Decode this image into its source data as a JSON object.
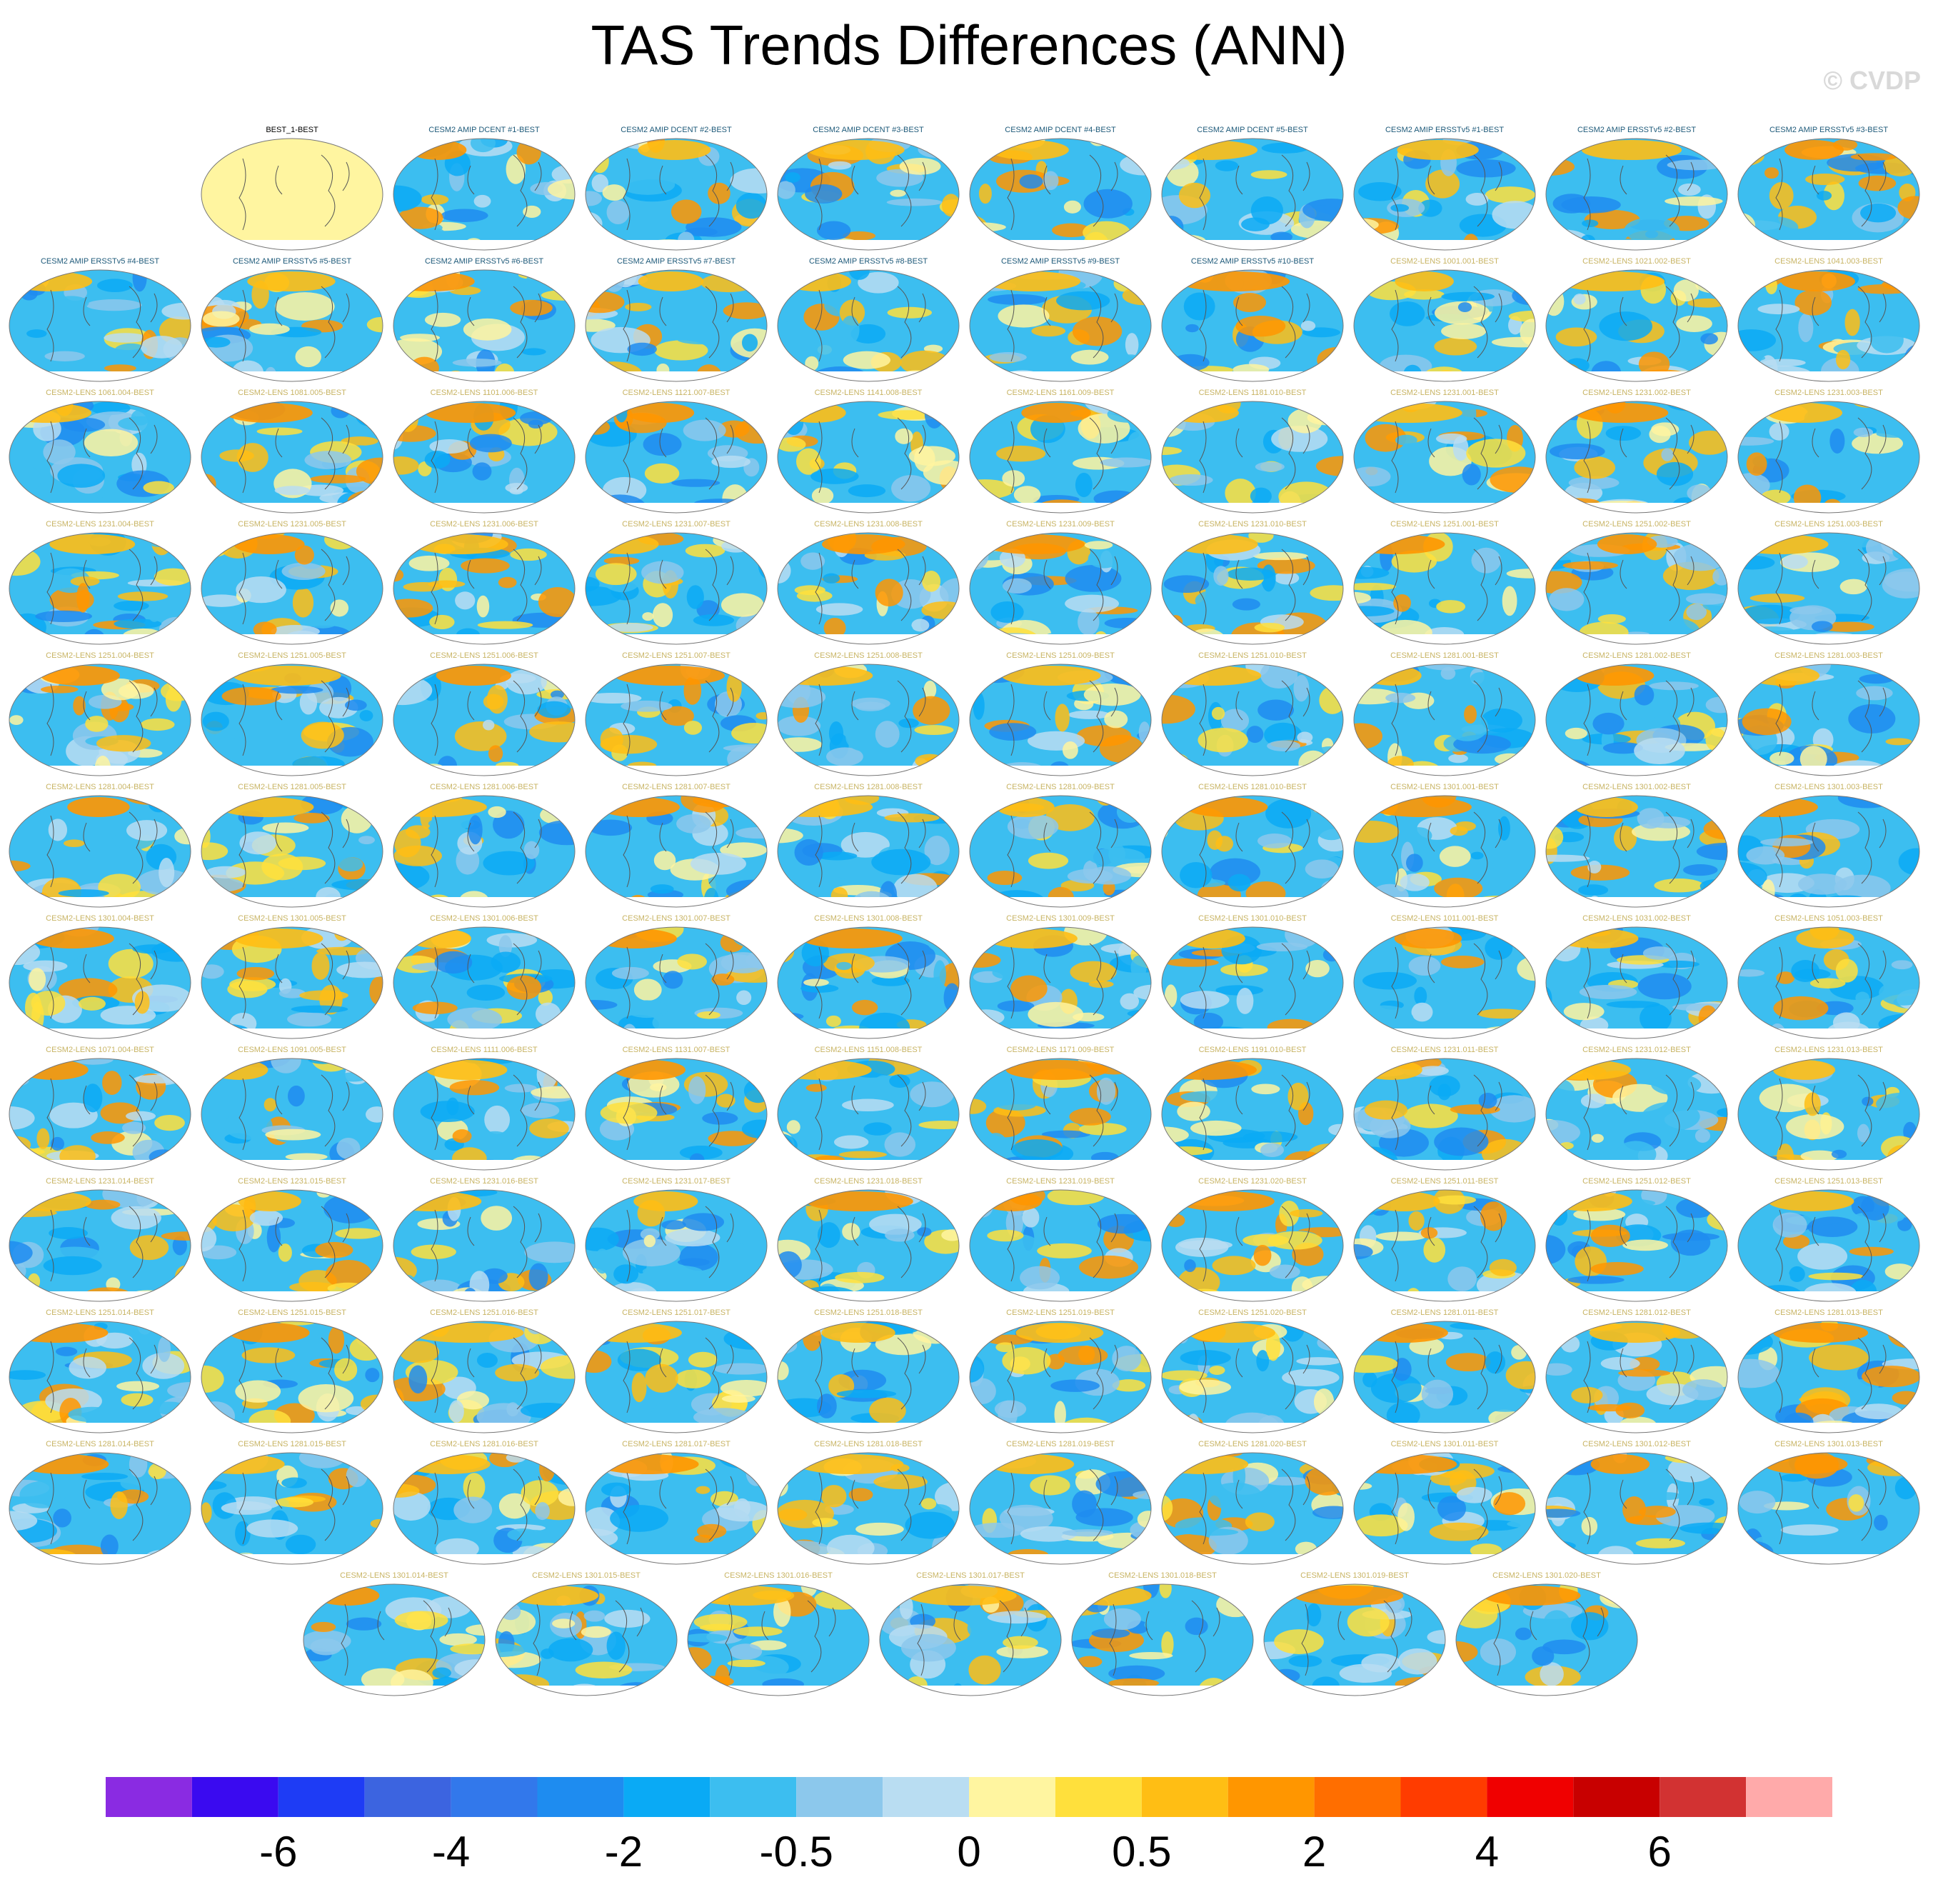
{
  "title": "TAS Trends Differences (ANN)",
  "copyright": "© CVDP",
  "chart_data": {
    "type": "heatmap",
    "title": "TAS Trends Differences (ANN)",
    "projection": "global map panels",
    "panel_titles": [
      "BEST_1-BEST",
      "CESM2 AMIP DCENT #1-BEST",
      "CESM2 AMIP DCENT #2-BEST",
      "CESM2 AMIP DCENT #3-BEST",
      "CESM2 AMIP DCENT #4-BEST",
      "CESM2 AMIP DCENT #5-BEST",
      "CESM2 AMIP ERSSTv5 #1-BEST",
      "CESM2 AMIP ERSSTv5 #2-BEST",
      "CESM2 AMIP ERSSTv5 #3-BEST",
      "CESM2 AMIP ERSSTv5 #4-BEST",
      "CESM2 AMIP ERSSTv5 #5-BEST",
      "CESM2 AMIP ERSSTv5 #6-BEST",
      "CESM2 AMIP ERSSTv5 #7-BEST",
      "CESM2 AMIP ERSSTv5 #8-BEST",
      "CESM2 AMIP ERSSTv5 #9-BEST",
      "CESM2 AMIP ERSSTv5 #10-BEST",
      "CESM2-LENS 1001.001-BEST",
      "CESM2-LENS 1021.002-BEST",
      "CESM2-LENS 1041.003-BEST",
      "CESM2-LENS 1061.004-BEST",
      "CESM2-LENS 1081.005-BEST",
      "CESM2-LENS 1101.006-BEST",
      "CESM2-LENS 1121.007-BEST",
      "CESM2-LENS 1141.008-BEST",
      "CESM2-LENS 1161.009-BEST",
      "CESM2-LENS 1181.010-BEST",
      "CESM2-LENS 1231.001-BEST",
      "CESM2-LENS 1231.002-BEST",
      "CESM2-LENS 1231.003-BEST",
      "CESM2-LENS 1231.004-BEST",
      "CESM2-LENS 1231.005-BEST",
      "CESM2-LENS 1231.006-BEST",
      "CESM2-LENS 1231.007-BEST",
      "CESM2-LENS 1231.008-BEST",
      "CESM2-LENS 1231.009-BEST",
      "CESM2-LENS 1231.010-BEST",
      "CESM2-LENS 1251.001-BEST",
      "CESM2-LENS 1251.002-BEST",
      "CESM2-LENS 1251.003-BEST",
      "CESM2-LENS 1251.004-BEST",
      "CESM2-LENS 1251.005-BEST",
      "CESM2-LENS 1251.006-BEST",
      "CESM2-LENS 1251.007-BEST",
      "CESM2-LENS 1251.008-BEST",
      "CESM2-LENS 1251.009-BEST",
      "CESM2-LENS 1251.010-BEST",
      "CESM2-LENS 1281.001-BEST",
      "CESM2-LENS 1281.002-BEST",
      "CESM2-LENS 1281.003-BEST",
      "CESM2-LENS 1281.004-BEST",
      "CESM2-LENS 1281.005-BEST",
      "CESM2-LENS 1281.006-BEST",
      "CESM2-LENS 1281.007-BEST",
      "CESM2-LENS 1281.008-BEST",
      "CESM2-LENS 1281.009-BEST",
      "CESM2-LENS 1281.010-BEST",
      "CESM2-LENS 1301.001-BEST",
      "CESM2-LENS 1301.002-BEST",
      "CESM2-LENS 1301.003-BEST",
      "CESM2-LENS 1301.004-BEST",
      "CESM2-LENS 1301.005-BEST",
      "CESM2-LENS 1301.006-BEST",
      "CESM2-LENS 1301.007-BEST",
      "CESM2-LENS 1301.008-BEST",
      "CESM2-LENS 1301.009-BEST",
      "CESM2-LENS 1301.010-BEST",
      "CESM2-LENS 1011.001-BEST",
      "CESM2-LENS 1031.002-BEST",
      "CESM2-LENS 1051.003-BEST",
      "CESM2-LENS 1071.004-BEST",
      "CESM2-LENS 1091.005-BEST",
      "CESM2-LENS 1111.006-BEST",
      "CESM2-LENS 1131.007-BEST",
      "CESM2-LENS 1151.008-BEST",
      "CESM2-LENS 1171.009-BEST",
      "CESM2-LENS 1191.010-BEST",
      "CESM2-LENS 1231.011-BEST",
      "CESM2-LENS 1231.012-BEST",
      "CESM2-LENS 1231.013-BEST",
      "CESM2-LENS 1231.014-BEST",
      "CESM2-LENS 1231.015-BEST",
      "CESM2-LENS 1231.016-BEST",
      "CESM2-LENS 1231.017-BEST",
      "CESM2-LENS 1231.018-BEST",
      "CESM2-LENS 1231.019-BEST",
      "CESM2-LENS 1231.020-BEST",
      "CESM2-LENS 1251.011-BEST",
      "CESM2-LENS 1251.012-BEST",
      "CESM2-LENS 1251.013-BEST",
      "CESM2-LENS 1251.014-BEST",
      "CESM2-LENS 1251.015-BEST",
      "CESM2-LENS 1251.016-BEST",
      "CESM2-LENS 1251.017-BEST",
      "CESM2-LENS 1251.018-BEST",
      "CESM2-LENS 1251.019-BEST",
      "CESM2-LENS 1251.020-BEST",
      "CESM2-LENS 1281.011-BEST",
      "CESM2-LENS 1281.012-BEST",
      "CESM2-LENS 1281.013-BEST",
      "CESM2-LENS 1281.014-BEST",
      "CESM2-LENS 1281.015-BEST",
      "CESM2-LENS 1281.016-BEST",
      "CESM2-LENS 1281.017-BEST",
      "CESM2-LENS 1281.018-BEST",
      "CESM2-LENS 1281.019-BEST",
      "CESM2-LENS 1281.020-BEST",
      "CESM2-LENS 1301.011-BEST",
      "CESM2-LENS 1301.012-BEST",
      "CESM2-LENS 1301.013-BEST",
      "CESM2-LENS 1301.014-BEST",
      "CESM2-LENS 1301.015-BEST",
      "CESM2-LENS 1301.016-BEST",
      "CESM2-LENS 1301.017-BEST",
      "CESM2-LENS 1301.018-BEST",
      "CESM2-LENS 1301.019-BEST",
      "CESM2-LENS 1301.020-BEST"
    ],
    "row_counts": [
      9,
      10,
      10,
      10,
      10,
      10,
      10,
      10,
      10,
      10,
      10,
      7
    ],
    "colorbar": {
      "colors": [
        "#8a2be2",
        "#3a0af0",
        "#1e3cf5",
        "#3c64e0",
        "#3278eb",
        "#1e8cf0",
        "#0aaaf5",
        "#3cbef0",
        "#8cc8ec",
        "#b9ddf2",
        "#fff5a0",
        "#ffe03c",
        "#ffbe14",
        "#ff9600",
        "#ff6e00",
        "#ff3c00",
        "#f00000",
        "#c80000",
        "#d23232",
        "#ffaaaa"
      ],
      "tick_labels": [
        "-6",
        "-4",
        "-2",
        "-0.5",
        "0",
        "0.5",
        "2",
        "4",
        "6"
      ],
      "tick_after_bin": [
        1,
        3,
        5,
        7,
        9,
        11,
        13,
        15,
        17
      ]
    }
  }
}
